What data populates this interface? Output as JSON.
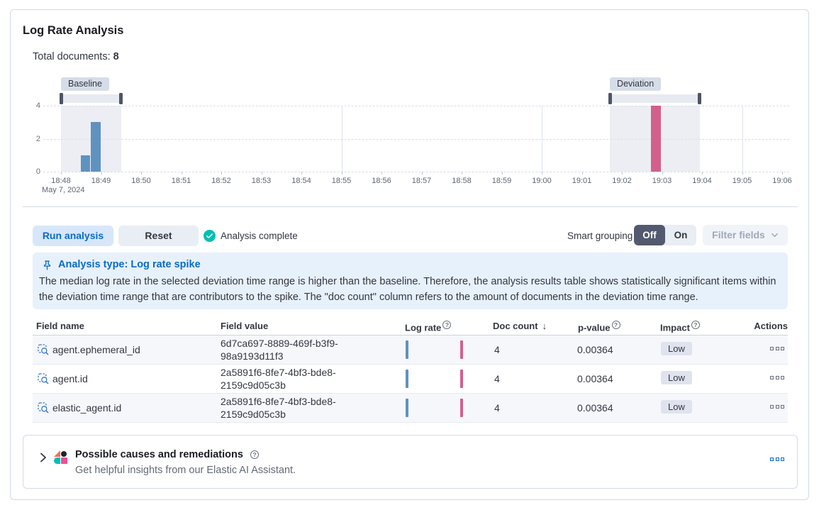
{
  "header": {
    "title": "Log Rate Analysis",
    "total_documents_label": "Total documents:",
    "total_documents_value": "8"
  },
  "chart_data": {
    "type": "bar",
    "x_ticks": [
      "18:48",
      "18:49",
      "18:50",
      "18:51",
      "18:52",
      "18:53",
      "18:54",
      "18:55",
      "18:56",
      "18:57",
      "18:58",
      "18:59",
      "19:00",
      "19:01",
      "19:02",
      "19:03",
      "19:04",
      "19:05",
      "19:06"
    ],
    "x_axis_secondary_label": "May 7, 2024",
    "y_ticks": [
      "4",
      "2",
      "0"
    ],
    "ylim": [
      0,
      4
    ],
    "emphasized_vertical_gridlines": [
      "18:55",
      "19:00",
      "19:05"
    ],
    "series": [
      {
        "name": "baseline",
        "color": "#6092C0",
        "bars": [
          {
            "x": "18:48:30",
            "minutes_from_start": 0.5,
            "width_minutes": 0.25,
            "value": 1
          },
          {
            "x": "18:48:45",
            "minutes_from_start": 0.75,
            "width_minutes": 0.25,
            "value": 3
          }
        ]
      },
      {
        "name": "deviation",
        "color": "#D3608C",
        "bars": [
          {
            "x": "19:02:45",
            "minutes_from_start": 14.72,
            "width_minutes": 0.27,
            "value": 4
          }
        ]
      }
    ],
    "brushes": [
      {
        "label": "Baseline",
        "start_minutes": 0,
        "end_minutes": 1.5
      },
      {
        "label": "Deviation",
        "start_minutes": 13.7,
        "end_minutes": 15.95
      }
    ]
  },
  "controls": {
    "run_label": "Run analysis",
    "reset_label": "Reset",
    "status_label": "Analysis complete",
    "smart_grouping_label": "Smart grouping",
    "toggle_off": "Off",
    "toggle_on": "On",
    "toggle_selected": "Off",
    "filter_fields_label": "Filter fields"
  },
  "callout": {
    "title": "Analysis type: Log rate spike",
    "body": "The median log rate in the selected deviation time range is higher than the baseline. Therefore, the analysis results table shows statistically significant items within the deviation time range that are contributors to the spike. The \"doc count\" column refers to the amount of documents in the deviation time range."
  },
  "table": {
    "columns": [
      {
        "id": "field_name",
        "label": "Field name"
      },
      {
        "id": "field_value",
        "label": "Field value"
      },
      {
        "id": "log_rate",
        "label": "Log rate",
        "info": true
      },
      {
        "id": "doc_count",
        "label": "Doc count",
        "sort": "desc"
      },
      {
        "id": "p_value",
        "label": "p-value",
        "info": true
      },
      {
        "id": "impact",
        "label": "Impact",
        "info": true
      },
      {
        "id": "actions",
        "label": "Actions"
      }
    ],
    "rows": [
      {
        "field_name": "agent.ephemeral_id",
        "field_value": "6d7ca697-8889-469f-b3f9-98a9193d11f3",
        "doc_count": "4",
        "p_value": "0.00364",
        "impact": "Low"
      },
      {
        "field_name": "agent.id",
        "field_value": "2a5891f6-8fe7-4bf3-bde8-2159c9d05c3b",
        "doc_count": "4",
        "p_value": "0.00364",
        "impact": "Low"
      },
      {
        "field_name": "elastic_agent.id",
        "field_value": "2a5891f6-8fe7-4bf3-bde8-2159c9d05c3b",
        "doc_count": "4",
        "p_value": "0.00364",
        "impact": "Low"
      }
    ]
  },
  "footer": {
    "title": "Possible causes and remediations",
    "subtitle": "Get helpful insights from our Elastic AI Assistant."
  },
  "colors": {
    "baseline_bar": "#6092C0",
    "deviation_bar": "#D3608C",
    "primary_blue": "#0b6bc7",
    "success_teal": "#00BFB3"
  }
}
